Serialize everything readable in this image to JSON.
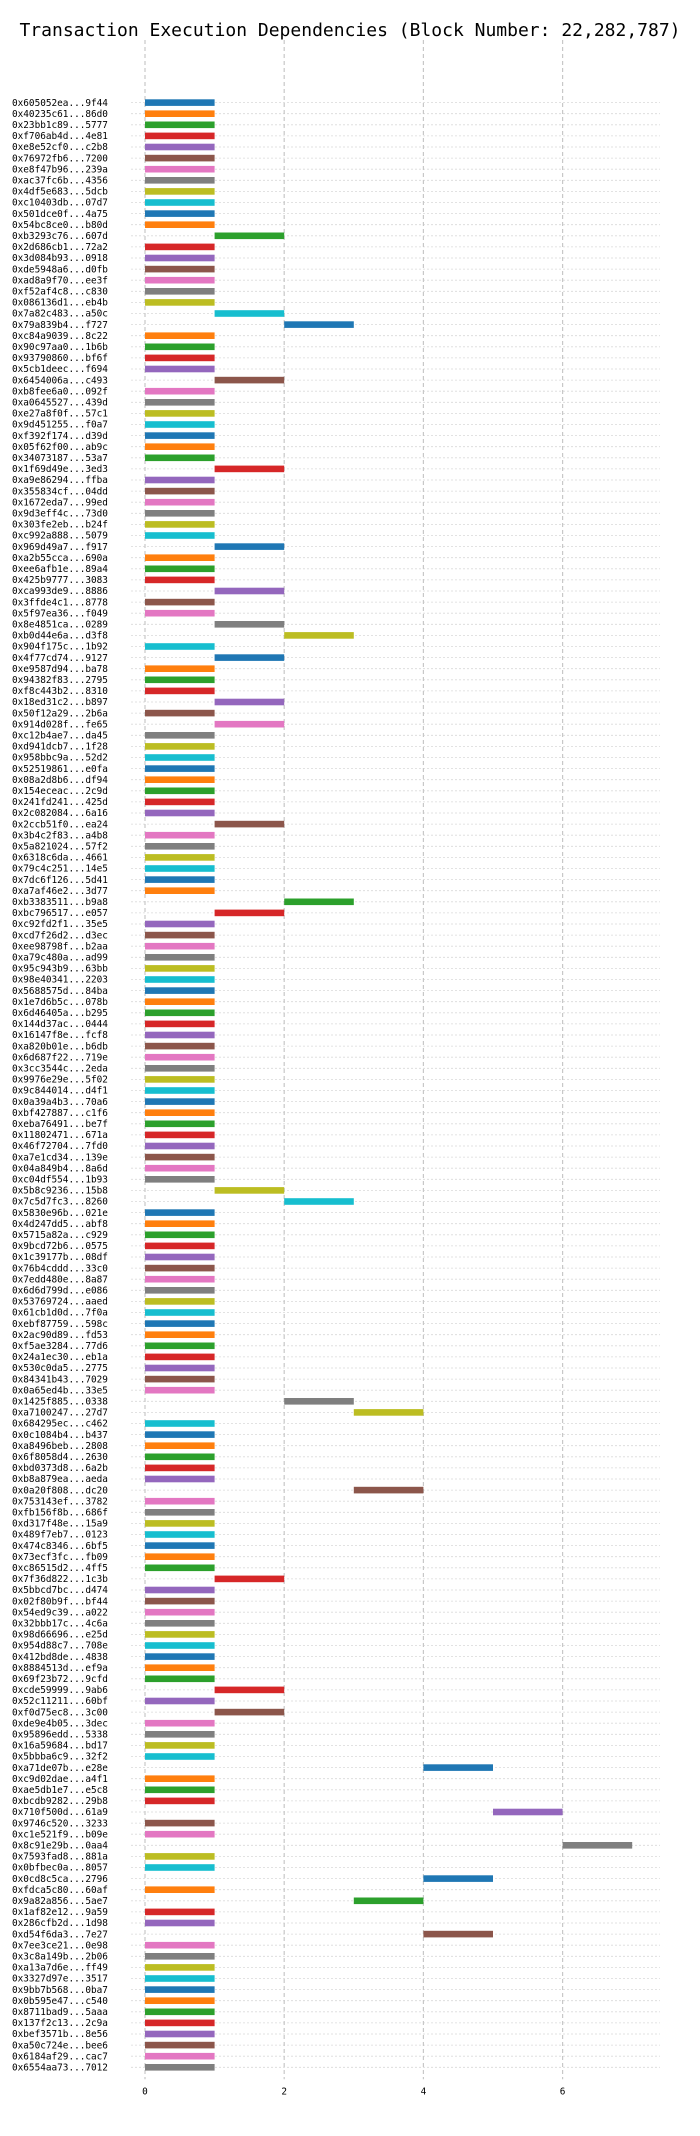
{
  "chart_data": {
    "type": "bar",
    "orientation": "horizontal-gantt",
    "title": "Transaction Execution Dependencies (Block Number: 22,282,787)",
    "xlabel": "",
    "ylabel": "",
    "xlim": [
      0,
      7.5
    ],
    "x_ticks": [
      0,
      2,
      4,
      6
    ],
    "grid": "vertical dashed at even ticks, horizontal dotted per row",
    "legend": "none",
    "palette": [
      "#1f77b4",
      "#ff7f0e",
      "#2ca02c",
      "#d62728",
      "#9467bd",
      "#8c564b",
      "#e377c2",
      "#7f7f7f",
      "#bcbd22",
      "#17becf"
    ],
    "transactions": [
      {
        "label": "0x605052ea...9f44",
        "start": 0,
        "end": 1
      },
      {
        "label": "0x40235c61...86d0",
        "start": 0,
        "end": 1
      },
      {
        "label": "0x23bb1c89...5777",
        "start": 0,
        "end": 1
      },
      {
        "label": "0xf706ab4d...4e81",
        "start": 0,
        "end": 1
      },
      {
        "label": "0xe8e52cf0...c2b8",
        "start": 0,
        "end": 1
      },
      {
        "label": "0x76972fb6...7200",
        "start": 0,
        "end": 1
      },
      {
        "label": "0xe8f47b96...239a",
        "start": 0,
        "end": 1
      },
      {
        "label": "0xac37fc6b...4356",
        "start": 0,
        "end": 1
      },
      {
        "label": "0x4df5e683...5dcb",
        "start": 0,
        "end": 1
      },
      {
        "label": "0xc10403db...07d7",
        "start": 0,
        "end": 1
      },
      {
        "label": "0x501dce0f...4a75",
        "start": 0,
        "end": 1
      },
      {
        "label": "0x54bc8ce0...b80d",
        "start": 0,
        "end": 1
      },
      {
        "label": "0xb3293c76...607d",
        "start": 1,
        "end": 2
      },
      {
        "label": "0x2d686cb1...72a2",
        "start": 0,
        "end": 1
      },
      {
        "label": "0x3d084b93...0918",
        "start": 0,
        "end": 1
      },
      {
        "label": "0xde5948a6...d0fb",
        "start": 0,
        "end": 1
      },
      {
        "label": "0xad8a9f70...ee3f",
        "start": 0,
        "end": 1
      },
      {
        "label": "0xf52af4c8...c830",
        "start": 0,
        "end": 1
      },
      {
        "label": "0x086136d1...eb4b",
        "start": 0,
        "end": 1
      },
      {
        "label": "0x7a82c483...a50c",
        "start": 1,
        "end": 2
      },
      {
        "label": "0x79a839b4...f727",
        "start": 2,
        "end": 3
      },
      {
        "label": "0xc84a9039...8c22",
        "start": 0,
        "end": 1
      },
      {
        "label": "0x90c97aa0...1b6b",
        "start": 0,
        "end": 1
      },
      {
        "label": "0x93790860...bf6f",
        "start": 0,
        "end": 1
      },
      {
        "label": "0x5cb1deec...f694",
        "start": 0,
        "end": 1
      },
      {
        "label": "0x6454006a...c493",
        "start": 1,
        "end": 2
      },
      {
        "label": "0xb8fee6a0...092f",
        "start": 0,
        "end": 1
      },
      {
        "label": "0xa0645527...439d",
        "start": 0,
        "end": 1
      },
      {
        "label": "0xe27a8f0f...57c1",
        "start": 0,
        "end": 1
      },
      {
        "label": "0x9d451255...f0a7",
        "start": 0,
        "end": 1
      },
      {
        "label": "0xf392f174...d39d",
        "start": 0,
        "end": 1
      },
      {
        "label": "0x05f62f00...ab9c",
        "start": 0,
        "end": 1
      },
      {
        "label": "0x34073187...53a7",
        "start": 0,
        "end": 1
      },
      {
        "label": "0x1f69d49e...3ed3",
        "start": 1,
        "end": 2
      },
      {
        "label": "0xa9e86294...ffba",
        "start": 0,
        "end": 1
      },
      {
        "label": "0x355834cf...04dd",
        "start": 0,
        "end": 1
      },
      {
        "label": "0x1672eda7...99ed",
        "start": 0,
        "end": 1
      },
      {
        "label": "0x9d3eff4c...73d0",
        "start": 0,
        "end": 1
      },
      {
        "label": "0x303fe2eb...b24f",
        "start": 0,
        "end": 1
      },
      {
        "label": "0xc992a888...5079",
        "start": 0,
        "end": 1
      },
      {
        "label": "0x969d49a7...f917",
        "start": 1,
        "end": 2
      },
      {
        "label": "0xa2b55cca...690a",
        "start": 0,
        "end": 1
      },
      {
        "label": "0xee6afb1e...89a4",
        "start": 0,
        "end": 1
      },
      {
        "label": "0x425b9777...3083",
        "start": 0,
        "end": 1
      },
      {
        "label": "0xca993de9...8886",
        "start": 1,
        "end": 2
      },
      {
        "label": "0x3ffde4c1...8778",
        "start": 0,
        "end": 1
      },
      {
        "label": "0x5f97ea36...f049",
        "start": 0,
        "end": 1
      },
      {
        "label": "0x8e4851ca...0289",
        "start": 1,
        "end": 2
      },
      {
        "label": "0xb0d44e6a...d3f8",
        "start": 2,
        "end": 3
      },
      {
        "label": "0x904f175c...1b92",
        "start": 0,
        "end": 1
      },
      {
        "label": "0x4f77cd74...9127",
        "start": 1,
        "end": 2
      },
      {
        "label": "0xe9587d94...ba78",
        "start": 0,
        "end": 1
      },
      {
        "label": "0x94382f83...2795",
        "start": 0,
        "end": 1
      },
      {
        "label": "0xf8c443b2...8310",
        "start": 0,
        "end": 1
      },
      {
        "label": "0x18ed31c2...b897",
        "start": 1,
        "end": 2
      },
      {
        "label": "0x50f12a29...2b6a",
        "start": 0,
        "end": 1
      },
      {
        "label": "0x914d028f...fe65",
        "start": 1,
        "end": 2
      },
      {
        "label": "0xc12b4ae7...da45",
        "start": 0,
        "end": 1
      },
      {
        "label": "0xd941dcb7...1f28",
        "start": 0,
        "end": 1
      },
      {
        "label": "0x958bbc9a...52d2",
        "start": 0,
        "end": 1
      },
      {
        "label": "0x52519861...e0fa",
        "start": 0,
        "end": 1
      },
      {
        "label": "0x08a2d8b6...df94",
        "start": 0,
        "end": 1
      },
      {
        "label": "0x154eceac...2c9d",
        "start": 0,
        "end": 1
      },
      {
        "label": "0x241fd241...425d",
        "start": 0,
        "end": 1
      },
      {
        "label": "0x2c082084...6a16",
        "start": 0,
        "end": 1
      },
      {
        "label": "0x2ccb51f0...ea24",
        "start": 1,
        "end": 2
      },
      {
        "label": "0x3b4c2f83...a4b8",
        "start": 0,
        "end": 1
      },
      {
        "label": "0x5a821024...57f2",
        "start": 0,
        "end": 1
      },
      {
        "label": "0x6318c6da...4661",
        "start": 0,
        "end": 1
      },
      {
        "label": "0x79c4c251...14e5",
        "start": 0,
        "end": 1
      },
      {
        "label": "0x7dc6f126...5d41",
        "start": 0,
        "end": 1
      },
      {
        "label": "0xa7af46e2...3d77",
        "start": 0,
        "end": 1
      },
      {
        "label": "0xb3383511...b9a8",
        "start": 2,
        "end": 3
      },
      {
        "label": "0xbc796517...e057",
        "start": 1,
        "end": 2
      },
      {
        "label": "0xc92fd2f1...35e5",
        "start": 0,
        "end": 1
      },
      {
        "label": "0xcd7f26d2...d3ec",
        "start": 0,
        "end": 1
      },
      {
        "label": "0xee98798f...b2aa",
        "start": 0,
        "end": 1
      },
      {
        "label": "0xa79c480a...ad99",
        "start": 0,
        "end": 1
      },
      {
        "label": "0x95c943b9...63bb",
        "start": 0,
        "end": 1
      },
      {
        "label": "0x98e40341...2203",
        "start": 0,
        "end": 1
      },
      {
        "label": "0x5688575d...84ba",
        "start": 0,
        "end": 1
      },
      {
        "label": "0x1e7d6b5c...078b",
        "start": 0,
        "end": 1
      },
      {
        "label": "0x6d46405a...b295",
        "start": 0,
        "end": 1
      },
      {
        "label": "0x144d37ac...0444",
        "start": 0,
        "end": 1
      },
      {
        "label": "0x16147f8e...fcf8",
        "start": 0,
        "end": 1
      },
      {
        "label": "0xa820b01e...b6db",
        "start": 0,
        "end": 1
      },
      {
        "label": "0x6d687f22...719e",
        "start": 0,
        "end": 1
      },
      {
        "label": "0x3cc3544c...2eda",
        "start": 0,
        "end": 1
      },
      {
        "label": "0x9976e29e...5f02",
        "start": 0,
        "end": 1
      },
      {
        "label": "0x9c844014...d4f1",
        "start": 0,
        "end": 1
      },
      {
        "label": "0x0a39a4b3...70a6",
        "start": 0,
        "end": 1
      },
      {
        "label": "0xbf427887...c1f6",
        "start": 0,
        "end": 1
      },
      {
        "label": "0xeba76491...be7f",
        "start": 0,
        "end": 1
      },
      {
        "label": "0x11802471...671a",
        "start": 0,
        "end": 1
      },
      {
        "label": "0x46f72704...7fd0",
        "start": 0,
        "end": 1
      },
      {
        "label": "0xa7e1cd34...139e",
        "start": 0,
        "end": 1
      },
      {
        "label": "0x04a849b4...8a6d",
        "start": 0,
        "end": 1
      },
      {
        "label": "0xc04df554...1b93",
        "start": 0,
        "end": 1
      },
      {
        "label": "0x5b8c9236...15b8",
        "start": 1,
        "end": 2
      },
      {
        "label": "0x7c5d7fc3...8260",
        "start": 2,
        "end": 3
      },
      {
        "label": "0x5830e96b...021e",
        "start": 0,
        "end": 1
      },
      {
        "label": "0x4d247dd5...abf8",
        "start": 0,
        "end": 1
      },
      {
        "label": "0x5715a82a...c929",
        "start": 0,
        "end": 1
      },
      {
        "label": "0x9bcd72b6...0575",
        "start": 0,
        "end": 1
      },
      {
        "label": "0x1c39177b...08df",
        "start": 0,
        "end": 1
      },
      {
        "label": "0x76b4cddd...33c0",
        "start": 0,
        "end": 1
      },
      {
        "label": "0x7edd480e...8a87",
        "start": 0,
        "end": 1
      },
      {
        "label": "0x6d6d799d...e086",
        "start": 0,
        "end": 1
      },
      {
        "label": "0x53769724...aaed",
        "start": 0,
        "end": 1
      },
      {
        "label": "0x61cb1d0d...7f0a",
        "start": 0,
        "end": 1
      },
      {
        "label": "0xebf87759...598c",
        "start": 0,
        "end": 1
      },
      {
        "label": "0x2ac90d89...fd53",
        "start": 0,
        "end": 1
      },
      {
        "label": "0xf5ae3284...77d6",
        "start": 0,
        "end": 1
      },
      {
        "label": "0x24a1ec30...eb1a",
        "start": 0,
        "end": 1
      },
      {
        "label": "0x530c0da5...2775",
        "start": 0,
        "end": 1
      },
      {
        "label": "0x84341b43...7029",
        "start": 0,
        "end": 1
      },
      {
        "label": "0x0a65ed4b...33e5",
        "start": 0,
        "end": 1
      },
      {
        "label": "0x1425f885...0338",
        "start": 2,
        "end": 3
      },
      {
        "label": "0xa7100247...27d7",
        "start": 3,
        "end": 4
      },
      {
        "label": "0x684295ec...c462",
        "start": 0,
        "end": 1
      },
      {
        "label": "0x0c1084b4...b437",
        "start": 0,
        "end": 1
      },
      {
        "label": "0xa8496beb...2808",
        "start": 0,
        "end": 1
      },
      {
        "label": "0x6f8058d4...2630",
        "start": 0,
        "end": 1
      },
      {
        "label": "0xbd0373d8...6a2b",
        "start": 0,
        "end": 1
      },
      {
        "label": "0xb8a879ea...aeda",
        "start": 0,
        "end": 1
      },
      {
        "label": "0x0a20f808...dc20",
        "start": 3,
        "end": 4
      },
      {
        "label": "0x753143ef...3782",
        "start": 0,
        "end": 1
      },
      {
        "label": "0xfb156f8b...686f",
        "start": 0,
        "end": 1
      },
      {
        "label": "0xd317f48e...15a9",
        "start": 0,
        "end": 1
      },
      {
        "label": "0x489f7eb7...0123",
        "start": 0,
        "end": 1
      },
      {
        "label": "0x474c8346...6bf5",
        "start": 0,
        "end": 1
      },
      {
        "label": "0x73ecf3fc...fb09",
        "start": 0,
        "end": 1
      },
      {
        "label": "0xc86515d2...4ff5",
        "start": 0,
        "end": 1
      },
      {
        "label": "0x7f36d822...1c3b",
        "start": 1,
        "end": 2
      },
      {
        "label": "0x5bbcd7bc...d474",
        "start": 0,
        "end": 1
      },
      {
        "label": "0x02f80b9f...bf44",
        "start": 0,
        "end": 1
      },
      {
        "label": "0x54ed9c39...a022",
        "start": 0,
        "end": 1
      },
      {
        "label": "0x32bbb17c...4c6a",
        "start": 0,
        "end": 1
      },
      {
        "label": "0x98d66696...e25d",
        "start": 0,
        "end": 1
      },
      {
        "label": "0x954d88c7...708e",
        "start": 0,
        "end": 1
      },
      {
        "label": "0x412bd8de...4838",
        "start": 0,
        "end": 1
      },
      {
        "label": "0x8884513d...ef9a",
        "start": 0,
        "end": 1
      },
      {
        "label": "0x69f23b72...9cfd",
        "start": 0,
        "end": 1
      },
      {
        "label": "0xcde59999...9ab6",
        "start": 1,
        "end": 2
      },
      {
        "label": "0x52c11211...60bf",
        "start": 0,
        "end": 1
      },
      {
        "label": "0xf0d75ec8...3c00",
        "start": 1,
        "end": 2
      },
      {
        "label": "0xde9e4b05...3dec",
        "start": 0,
        "end": 1
      },
      {
        "label": "0x95896edd...5338",
        "start": 0,
        "end": 1
      },
      {
        "label": "0x16a59684...bd17",
        "start": 0,
        "end": 1
      },
      {
        "label": "0x5bbba6c9...32f2",
        "start": 0,
        "end": 1
      },
      {
        "label": "0xa71de07b...e28e",
        "start": 4,
        "end": 5
      },
      {
        "label": "0xc9d02dae...a4f1",
        "start": 0,
        "end": 1
      },
      {
        "label": "0xae5db1e7...e5c8",
        "start": 0,
        "end": 1
      },
      {
        "label": "0xbcdb9282...29b8",
        "start": 0,
        "end": 1
      },
      {
        "label": "0x710f500d...61a9",
        "start": 5,
        "end": 6
      },
      {
        "label": "0x9746c520...3233",
        "start": 0,
        "end": 1
      },
      {
        "label": "0xc1e521f9...b09e",
        "start": 0,
        "end": 1
      },
      {
        "label": "0x8c91e29b...0aa4",
        "start": 6,
        "end": 7
      },
      {
        "label": "0x7593fad8...881a",
        "start": 0,
        "end": 1
      },
      {
        "label": "0x0bfbec0a...8057",
        "start": 0,
        "end": 1
      },
      {
        "label": "0x0cd8c5ca...2796",
        "start": 4,
        "end": 5
      },
      {
        "label": "0xfdca5c80...60af",
        "start": 0,
        "end": 1
      },
      {
        "label": "0x9a82a856...5ae7",
        "start": 3,
        "end": 4
      },
      {
        "label": "0x1af82e12...9a59",
        "start": 0,
        "end": 1
      },
      {
        "label": "0x286cfb2d...1d98",
        "start": 0,
        "end": 1
      },
      {
        "label": "0xd54f6da3...7e27",
        "start": 4,
        "end": 5
      },
      {
        "label": "0x7ee3ce21...0e98",
        "start": 0,
        "end": 1
      },
      {
        "label": "0x3c8a149b...2b06",
        "start": 0,
        "end": 1
      },
      {
        "label": "0xa13a7d6e...ff49",
        "start": 0,
        "end": 1
      },
      {
        "label": "0x3327d97e...3517",
        "start": 0,
        "end": 1
      },
      {
        "label": "0x9bb7b568...0ba7",
        "start": 0,
        "end": 1
      },
      {
        "label": "0x0b595e47...c540",
        "start": 0,
        "end": 1
      },
      {
        "label": "0x8711bad9...5aaa",
        "start": 0,
        "end": 1
      },
      {
        "label": "0x137f2c13...2c9a",
        "start": 0,
        "end": 1
      },
      {
        "label": "0xbef3571b...8e56",
        "start": 0,
        "end": 1
      },
      {
        "label": "0xa50c724e...bee6",
        "start": 0,
        "end": 1
      },
      {
        "label": "0x6184af29...cac7",
        "start": 0,
        "end": 1
      },
      {
        "label": "0x6554aa73...7012",
        "start": 0,
        "end": 1
      }
    ]
  }
}
